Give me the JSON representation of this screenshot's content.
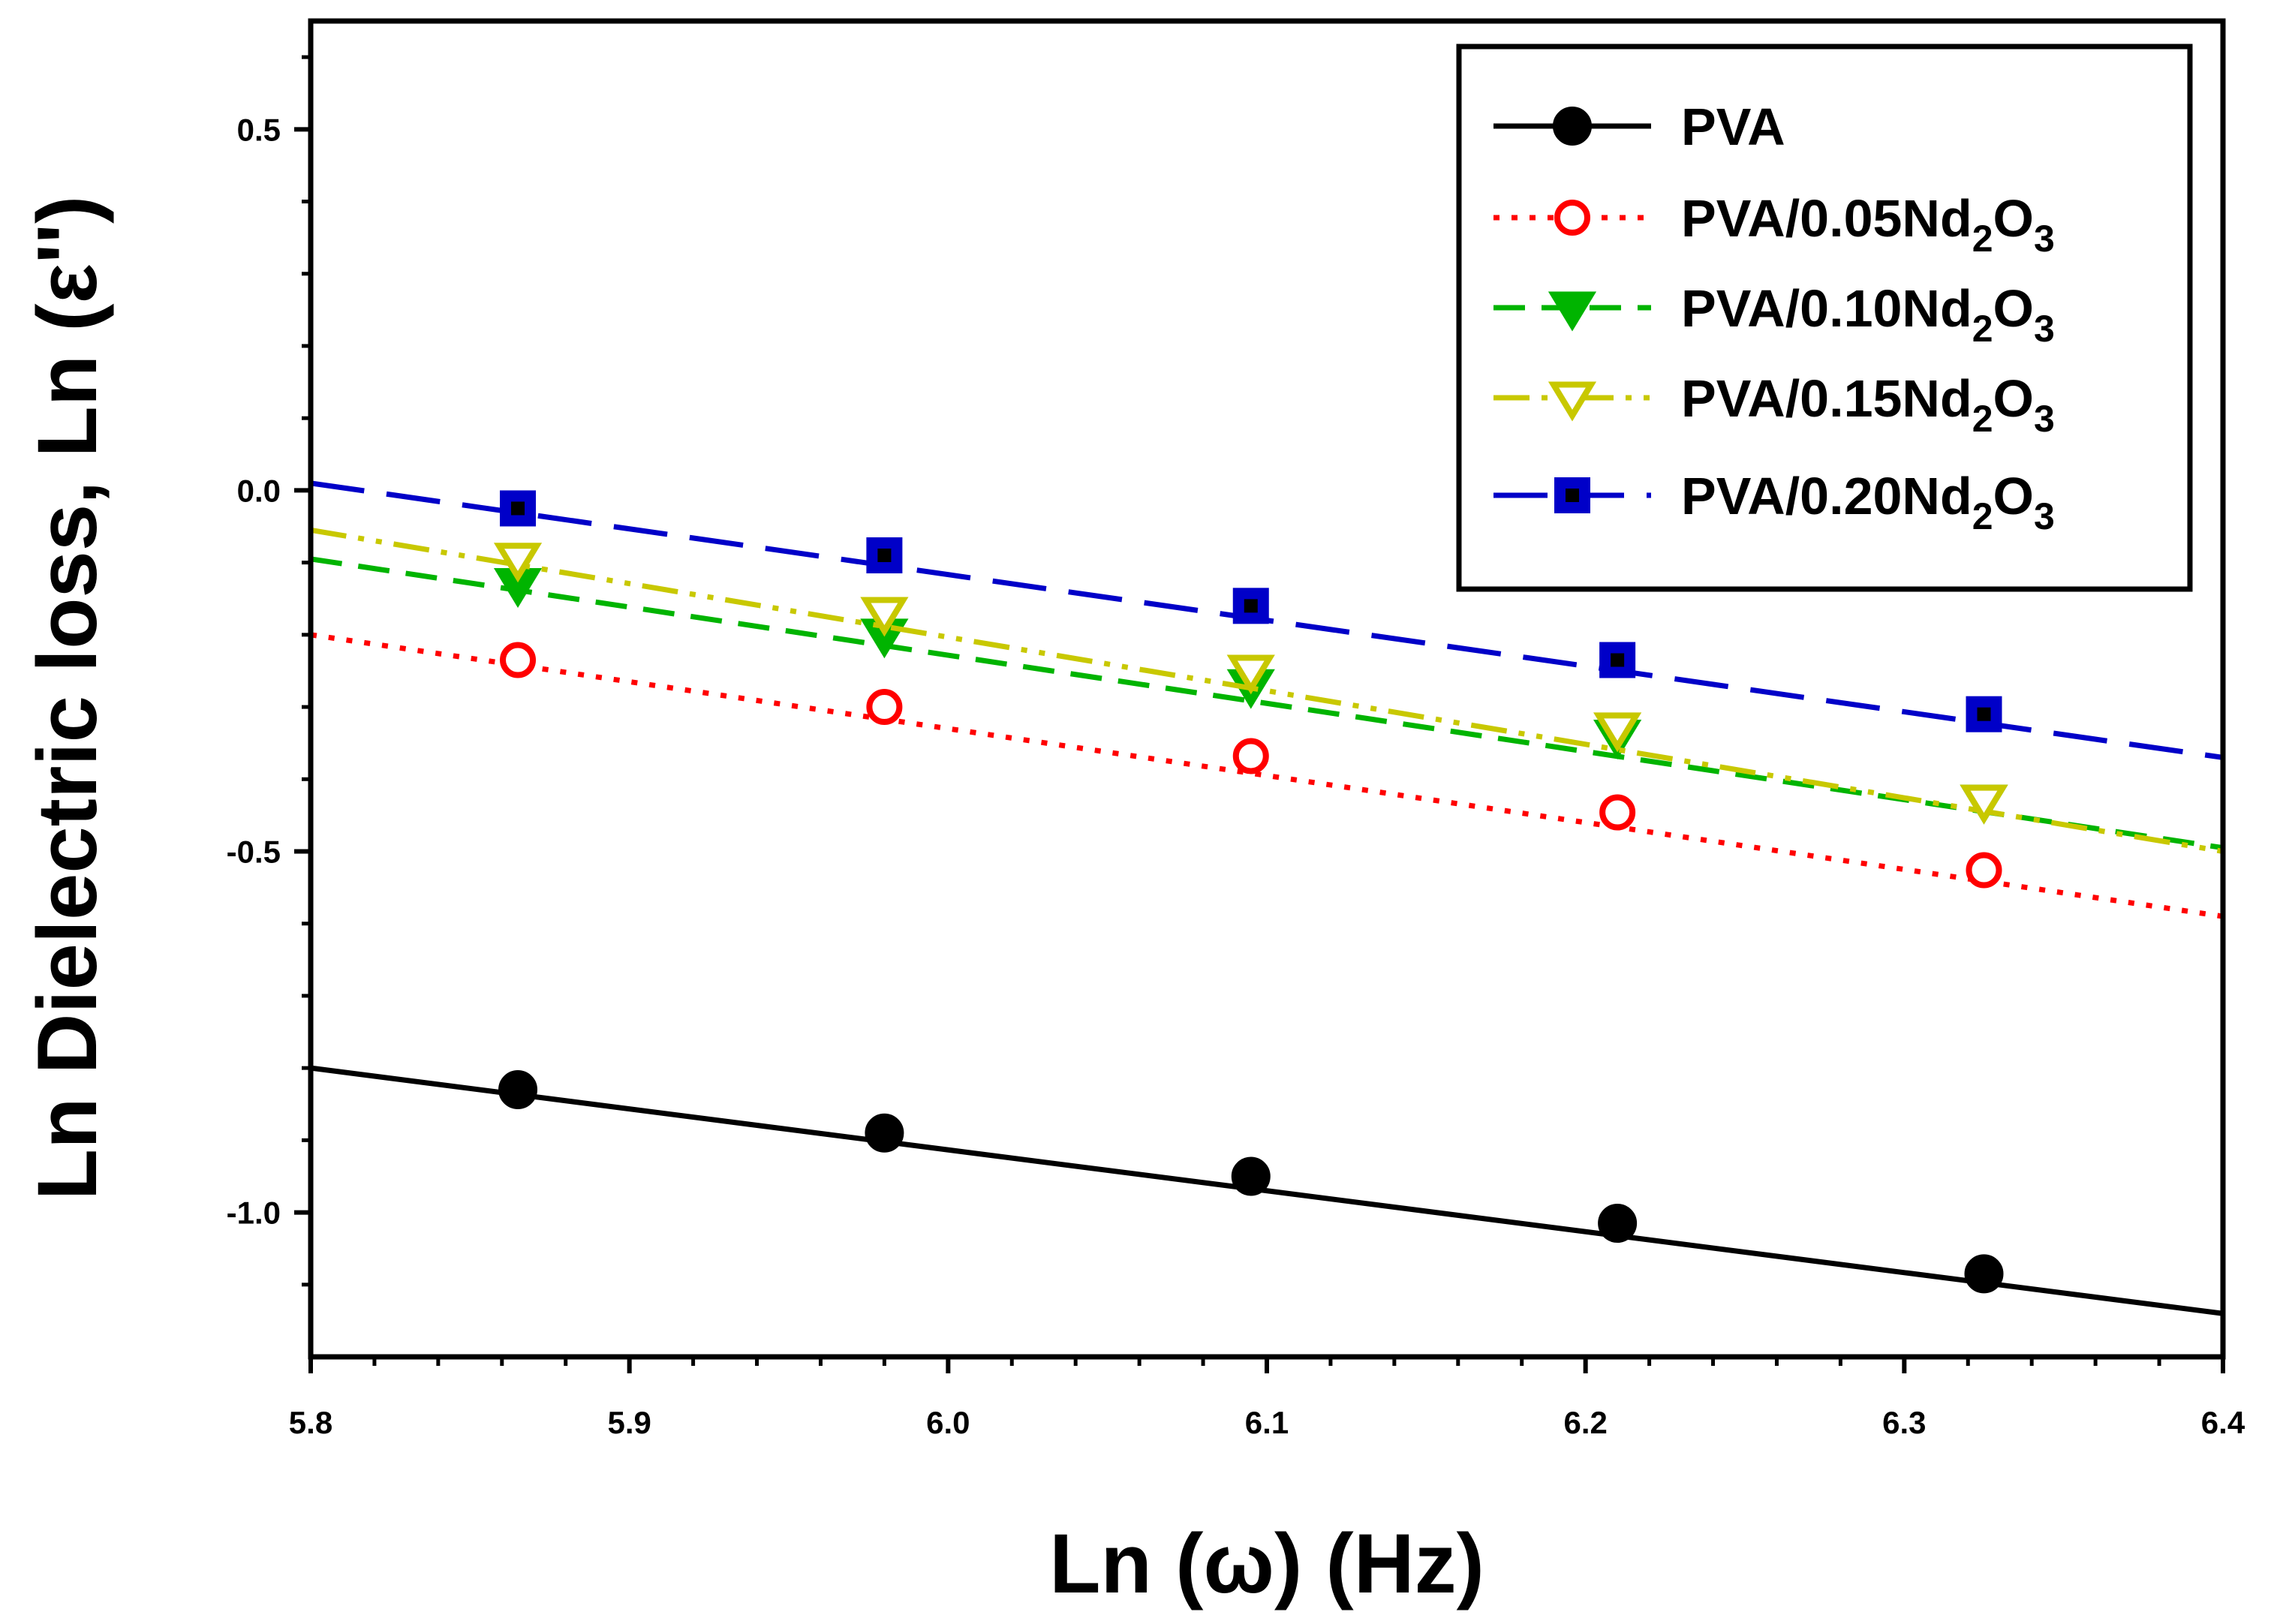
{
  "chart_data": {
    "type": "line",
    "title": "",
    "xlabel": "Ln (ω) (Hz)",
    "ylabel": "Ln Dielectric loss, Ln (ε'')",
    "xlim": [
      5.8,
      6.4
    ],
    "ylim": [
      -1.2,
      0.65
    ],
    "x_ticks": [
      5.8,
      5.9,
      6.0,
      6.1,
      6.2,
      6.3,
      6.4
    ],
    "x_tick_labels": [
      "5.8",
      "5.9",
      "6.0",
      "6.1",
      "6.2",
      "6.3",
      "6.4"
    ],
    "y_ticks": [
      0.5,
      0.0,
      -0.5,
      -1.0
    ],
    "y_tick_labels": [
      "0.5",
      "0.0",
      "-0.5",
      "-1.0"
    ],
    "grid": false,
    "legend_position": "top-right",
    "series": [
      {
        "name": "PVA",
        "legend_base": "PVA",
        "legend_sub": "",
        "legend_tail": "",
        "color": "#000000",
        "dash": "solid",
        "marker": "circle-filled",
        "marker_fill": "#000000",
        "fit_line": {
          "x": [
            5.8,
            6.4
          ],
          "y": [
            -0.8,
            -1.14
          ]
        },
        "x": [
          5.865,
          5.98,
          6.095,
          6.21,
          6.325
        ],
        "values": [
          -0.83,
          -0.89,
          -0.95,
          -1.015,
          -1.085
        ]
      },
      {
        "name": "PVA/0.05Nd2O3",
        "legend_base": "PVA/0.05Nd",
        "legend_sub": "2",
        "legend_tail": "O",
        "legend_sub2": "3",
        "color": "#ff0000",
        "dash": "dotted",
        "marker": "circle-open",
        "marker_fill": "#ffffff",
        "fit_line": {
          "x": [
            5.8,
            6.4
          ],
          "y": [
            -0.2,
            -0.59
          ]
        },
        "x": [
          5.865,
          5.98,
          6.095,
          6.21,
          6.325
        ],
        "values": [
          -0.235,
          -0.3,
          -0.368,
          -0.446,
          -0.526
        ]
      },
      {
        "name": "PVA/0.10Nd2O3",
        "legend_base": "PVA/0.10Nd",
        "legend_sub": "2",
        "legend_tail": "O",
        "legend_sub2": "3",
        "color": "#00b400",
        "dash": "dashed",
        "marker": "triangle-down-filled",
        "marker_fill": "#00b400",
        "fit_line": {
          "x": [
            5.8,
            6.4
          ],
          "y": [
            -0.095,
            -0.495
          ]
        },
        "x": [
          5.865,
          5.98,
          6.095,
          6.21,
          6.325
        ],
        "values": [
          -0.13,
          -0.2,
          -0.27,
          -0.34,
          -0.43
        ]
      },
      {
        "name": "PVA/0.15Nd2O3",
        "legend_base": "PVA/0.15Nd",
        "legend_sub": "2",
        "legend_tail": "O",
        "legend_sub2": "3",
        "color": "#c8c800",
        "dash": "dash-dot-dot",
        "marker": "triangle-down-open",
        "marker_fill": "#ffffff",
        "fit_line": {
          "x": [
            5.8,
            6.4
          ],
          "y": [
            -0.055,
            -0.5
          ]
        },
        "x": [
          5.865,
          5.98,
          6.095,
          6.21,
          6.325
        ],
        "values": [
          -0.095,
          -0.17,
          -0.25,
          -0.33,
          -0.43
        ]
      },
      {
        "name": "PVA/0.20Nd2O3",
        "legend_base": "PVA/0.20Nd",
        "legend_sub": "2",
        "legend_tail": "O",
        "legend_sub2": "3",
        "color": "#0000c8",
        "dash": "long-dash",
        "marker": "square-filled",
        "marker_fill": "#0000c8",
        "fit_line": {
          "x": [
            5.8,
            6.4
          ],
          "y": [
            0.01,
            -0.37
          ]
        },
        "x": [
          5.865,
          5.98,
          6.095,
          6.21,
          6.325
        ],
        "values": [
          -0.025,
          -0.09,
          -0.16,
          -0.235,
          -0.31
        ]
      }
    ]
  }
}
